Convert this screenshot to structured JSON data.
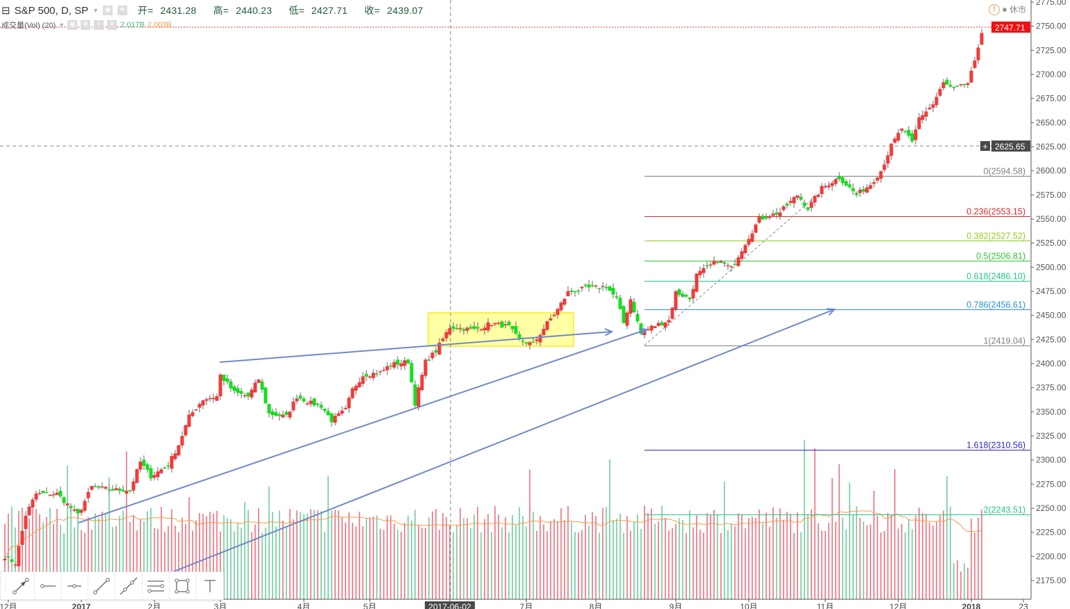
{
  "header": {
    "symbol": "S&P 500, D, SP",
    "open_label": "开=",
    "open": "2431.28",
    "high_label": "高=",
    "high": "2440.23",
    "low_label": "低=",
    "low": "2427.71",
    "close_label": "收=",
    "close": "2439.07"
  },
  "volume_legend": {
    "name": "成交量(Vol) (20)",
    "value1": "2.017B",
    "value2": "2.003B"
  },
  "status": {
    "market": "休市"
  },
  "price_labels": {
    "last": "2747.71",
    "crosshair": "2625.65"
  },
  "y_axis": [
    "2775.00",
    "2750.00",
    "2725.00",
    "2700.00",
    "2675.00",
    "2650.00",
    "2625.00",
    "2600.00",
    "2575.00",
    "2550.00",
    "2525.00",
    "2500.00",
    "2475.00",
    "2450.00",
    "2425.00",
    "2400.00",
    "2375.00",
    "2350.00",
    "2325.00",
    "2300.00",
    "2275.00",
    "2250.00",
    "2225.00",
    "2200.00",
    "2175.00"
  ],
  "x_axis": [
    {
      "label": "12月",
      "day": 1
    },
    {
      "label": "2017",
      "day": 22
    },
    {
      "label": "2月",
      "day": 43
    },
    {
      "label": "3月",
      "day": 62
    },
    {
      "label": "4月",
      "day": 86
    },
    {
      "label": "5月",
      "day": 105
    },
    {
      "label": "2017-06-02",
      "day": 128,
      "highlight": true
    },
    {
      "label": "7月",
      "day": 150
    },
    {
      "label": "8月",
      "day": 170
    },
    {
      "label": "9月",
      "day": 193
    },
    {
      "label": "10月",
      "day": 214
    },
    {
      "label": "11月",
      "day": 236
    },
    {
      "label": "12月",
      "day": 257
    },
    {
      "label": "2018",
      "day": 278
    },
    {
      "label": "23",
      "day": 293
    }
  ],
  "fib_levels": [
    {
      "label": "0(2594.58)",
      "price": 2594.58,
      "color": "#808080"
    },
    {
      "label": "0.236(2553.15)",
      "price": 2553.15,
      "color": "#d8282c"
    },
    {
      "label": "0.382(2527.52)",
      "price": 2527.52,
      "color": "#8fce1c"
    },
    {
      "label": "0.5(2506.81)",
      "price": 2506.81,
      "color": "#2cc72c"
    },
    {
      "label": "0.618(2486.10)",
      "price": 2486.1,
      "color": "#22c48c"
    },
    {
      "label": "0.786(2456.61)",
      "price": 2456.61,
      "color": "#2a8fd4"
    },
    {
      "label": "1(2419.04)",
      "price": 2419.04,
      "color": "#808080"
    },
    {
      "label": "1.618(2310.56)",
      "price": 2310.56,
      "color": "#2a2ac4"
    },
    {
      "label": "2(2243.51)",
      "price": 2243.51,
      "color": "#22c48c"
    }
  ],
  "tools": [
    "arrow-tool",
    "horizontal-ray-tool",
    "horizontal-line-tool",
    "trend-line-tool",
    "extended-line-tool",
    "parallel-channel-tool",
    "rectangle-tool",
    "text-tool"
  ],
  "chart_data": {
    "type": "candlestick",
    "price_range": [
      2175,
      2775
    ],
    "up_color": "#f23a3a",
    "down_color": "#14e01e",
    "close_anchors": [
      [
        0,
        2200
      ],
      [
        3,
        2193
      ],
      [
        6,
        2243
      ],
      [
        9,
        2265
      ],
      [
        15,
        2265
      ],
      [
        21,
        2243
      ],
      [
        25,
        2272
      ],
      [
        31,
        2269
      ],
      [
        36,
        2269
      ],
      [
        39,
        2298
      ],
      [
        42,
        2283
      ],
      [
        47,
        2295
      ],
      [
        50,
        2316
      ],
      [
        53,
        2345
      ],
      [
        57,
        2363
      ],
      [
        61,
        2366
      ],
      [
        62,
        2388
      ],
      [
        66,
        2370
      ],
      [
        70,
        2366
      ],
      [
        73,
        2384
      ],
      [
        76,
        2348
      ],
      [
        81,
        2345
      ],
      [
        84,
        2366
      ],
      [
        88,
        2359
      ],
      [
        91,
        2356
      ],
      [
        94,
        2341
      ],
      [
        98,
        2352
      ],
      [
        100,
        2373
      ],
      [
        103,
        2388
      ],
      [
        108,
        2391
      ],
      [
        111,
        2399
      ],
      [
        116,
        2402
      ],
      [
        118,
        2359
      ],
      [
        121,
        2402
      ],
      [
        124,
        2413
      ],
      [
        128,
        2438
      ],
      [
        135,
        2435
      ],
      [
        140,
        2442
      ],
      [
        145,
        2438
      ],
      [
        148,
        2424
      ],
      [
        152,
        2420
      ],
      [
        156,
        2442
      ],
      [
        159,
        2456
      ],
      [
        162,
        2474
      ],
      [
        167,
        2478
      ],
      [
        173,
        2480
      ],
      [
        176,
        2467
      ],
      [
        178,
        2442
      ],
      [
        180,
        2467
      ],
      [
        183,
        2431
      ],
      [
        186,
        2438
      ],
      [
        191,
        2445
      ],
      [
        193,
        2474
      ],
      [
        197,
        2467
      ],
      [
        199,
        2492
      ],
      [
        205,
        2507
      ],
      [
        209,
        2499
      ],
      [
        213,
        2525
      ],
      [
        217,
        2550
      ],
      [
        223,
        2557
      ],
      [
        228,
        2575
      ],
      [
        231,
        2561
      ],
      [
        235,
        2582
      ],
      [
        240,
        2593
      ],
      [
        245,
        2575
      ],
      [
        249,
        2586
      ],
      [
        252,
        2600
      ],
      [
        255,
        2626
      ],
      [
        258,
        2644
      ],
      [
        261,
        2629
      ],
      [
        263,
        2655
      ],
      [
        267,
        2669
      ],
      [
        270,
        2691
      ],
      [
        273,
        2684
      ],
      [
        277,
        2691
      ],
      [
        279,
        2712
      ],
      [
        281,
        2745
      ]
    ],
    "volume_ma_period": 20
  }
}
